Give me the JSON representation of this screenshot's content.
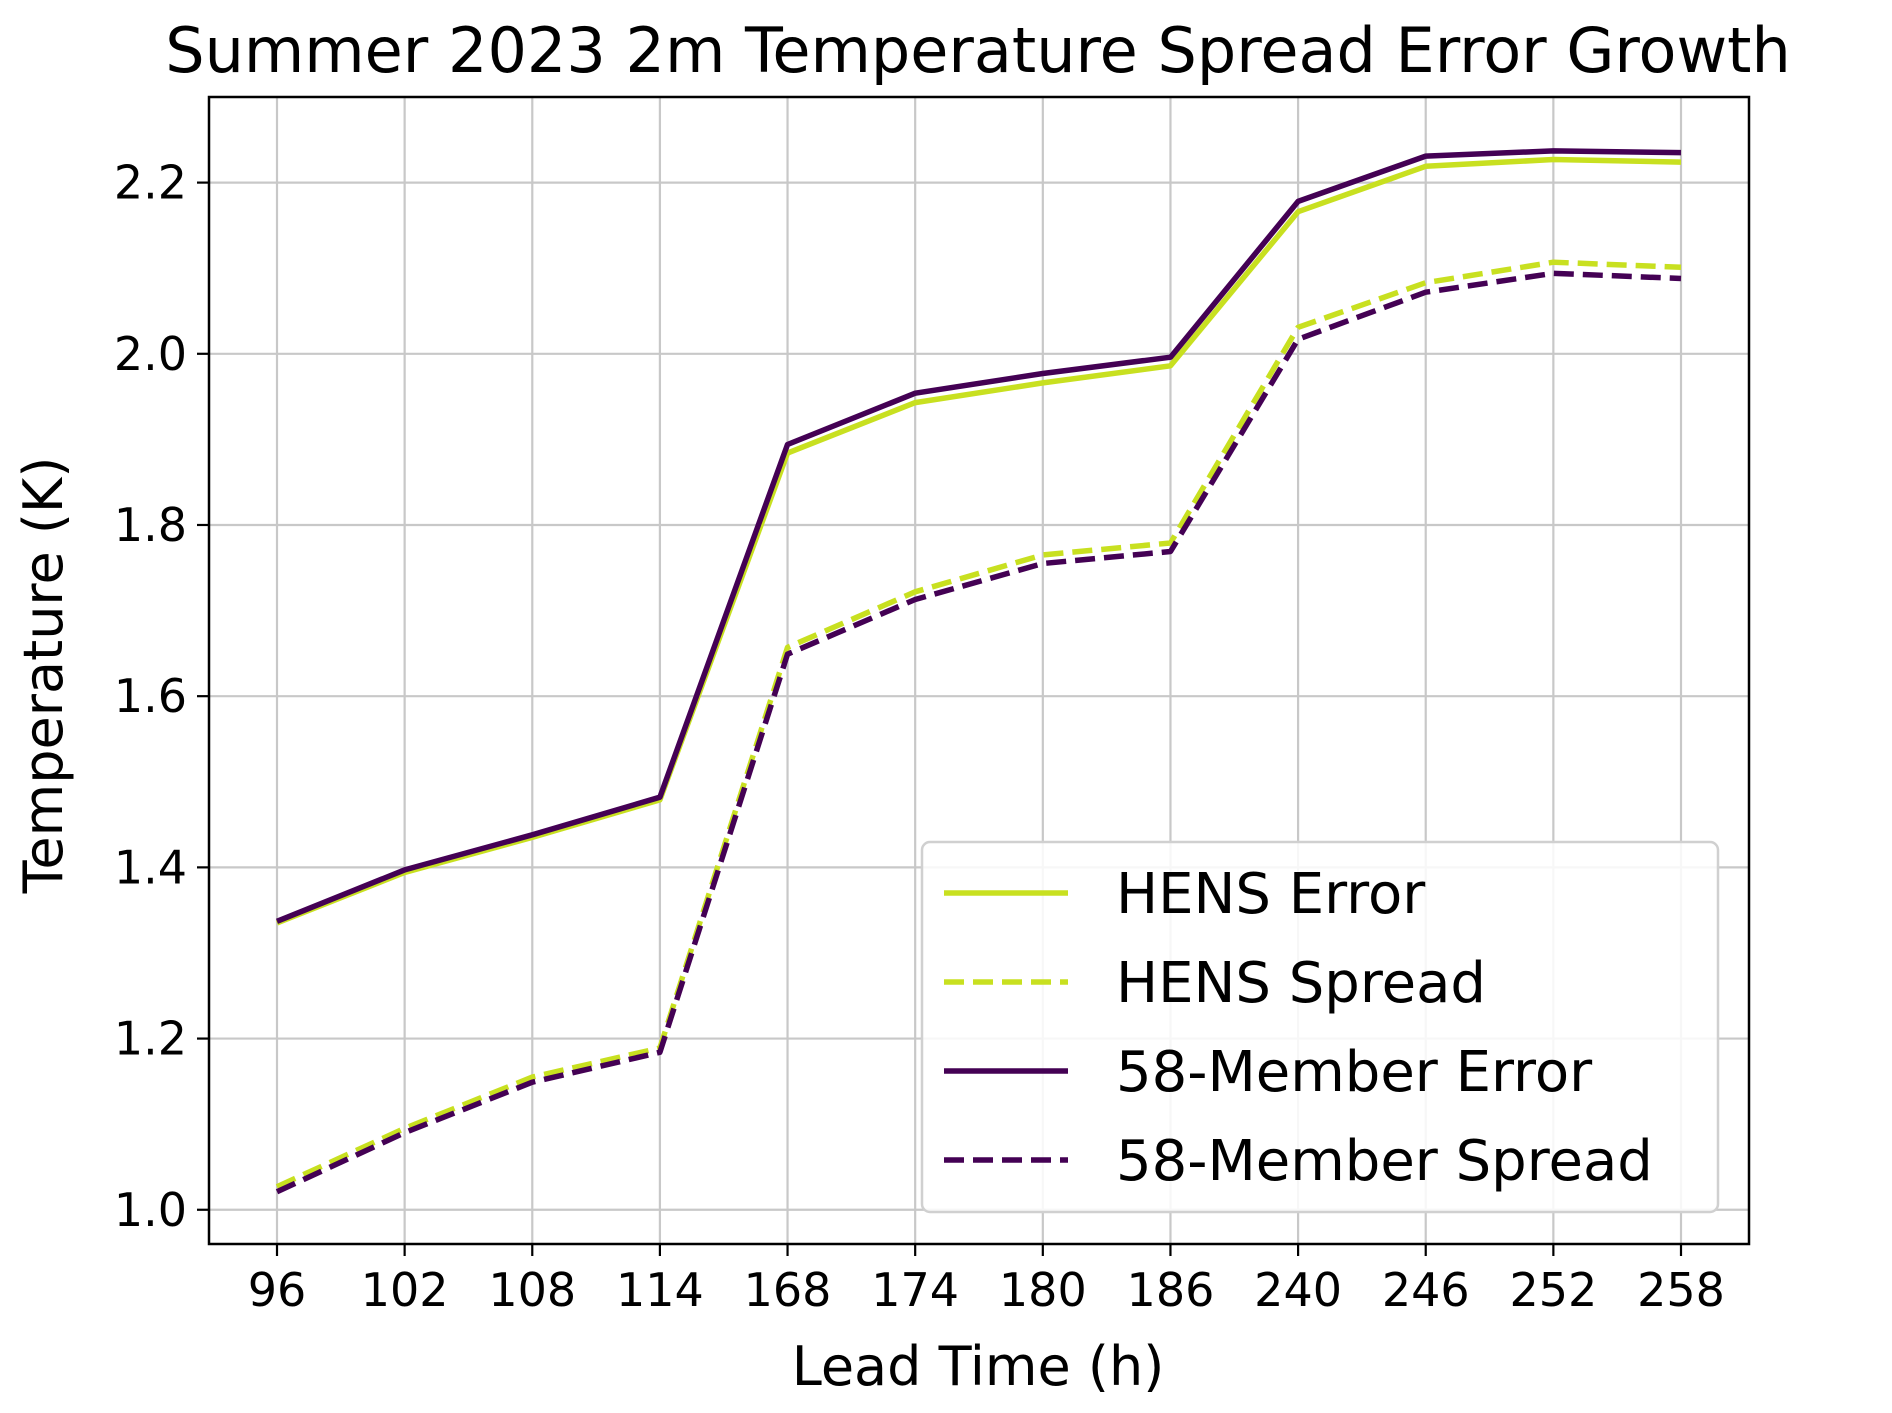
{
  "chart_data": {
    "type": "line",
    "title": "Summer 2023 2m Temperature Spread Error Growth",
    "xlabel": "Lead Time (h)",
    "ylabel": "Temperature (K)",
    "categories": [
      "96",
      "102",
      "108",
      "114",
      "168",
      "174",
      "180",
      "186",
      "240",
      "246",
      "252",
      "258"
    ],
    "ylim": [
      0.96,
      2.3
    ],
    "yticks": [
      "1.0",
      "1.2",
      "1.4",
      "1.6",
      "1.8",
      "2.0",
      "2.2"
    ],
    "grid": true,
    "legend_position": "lower-right",
    "series": [
      {
        "name": "HENS Error",
        "style": "solid",
        "color": "#c8e020",
        "values": [
          1.335,
          1.394,
          1.435,
          1.479,
          1.884,
          1.943,
          1.966,
          1.986,
          2.166,
          2.219,
          2.227,
          2.224
        ]
      },
      {
        "name": "HENS Spread",
        "style": "dashed",
        "color": "#c8e020",
        "values": [
          1.027,
          1.095,
          1.155,
          1.189,
          1.657,
          1.722,
          1.765,
          1.779,
          2.031,
          2.083,
          2.107,
          2.101
        ]
      },
      {
        "name": "58-Member Error",
        "style": "solid",
        "color": "#440154",
        "values": [
          1.337,
          1.397,
          1.438,
          1.482,
          1.894,
          1.954,
          1.977,
          1.996,
          2.178,
          2.231,
          2.237,
          2.235
        ]
      },
      {
        "name": "58-Member Spread",
        "style": "dashed",
        "color": "#440154",
        "values": [
          1.021,
          1.09,
          1.149,
          1.184,
          1.649,
          1.713,
          1.755,
          1.769,
          2.017,
          2.072,
          2.094,
          2.088
        ]
      }
    ]
  }
}
